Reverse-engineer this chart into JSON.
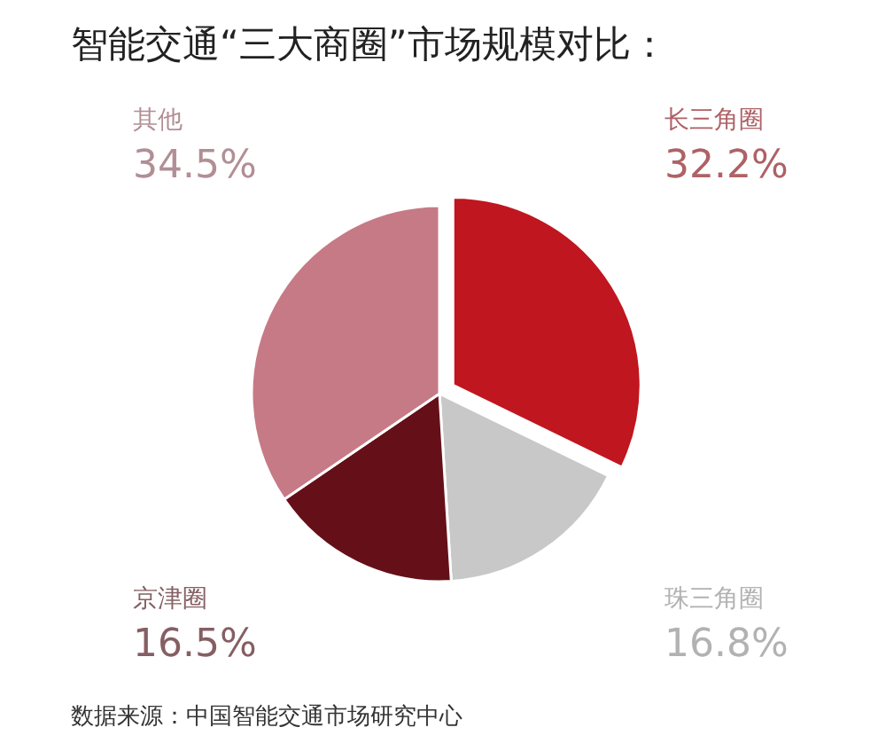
{
  "chart_data": {
    "type": "pie",
    "title": "智能交通“三大商圈”市场规模对比：",
    "categories": [
      "长三角圈",
      "珠三角圈",
      "京津圈",
      "其他"
    ],
    "values": [
      32.2,
      16.8,
      16.5,
      34.5
    ],
    "colors": [
      "#c0161f",
      "#c8c8c8",
      "#651018",
      "#c67a86"
    ],
    "value_labels": [
      "32.2%",
      "16.8%",
      "16.5%",
      "34.5%"
    ],
    "annotations": [
      "数据来源：中国智能交通市场研究中心"
    ]
  }
}
